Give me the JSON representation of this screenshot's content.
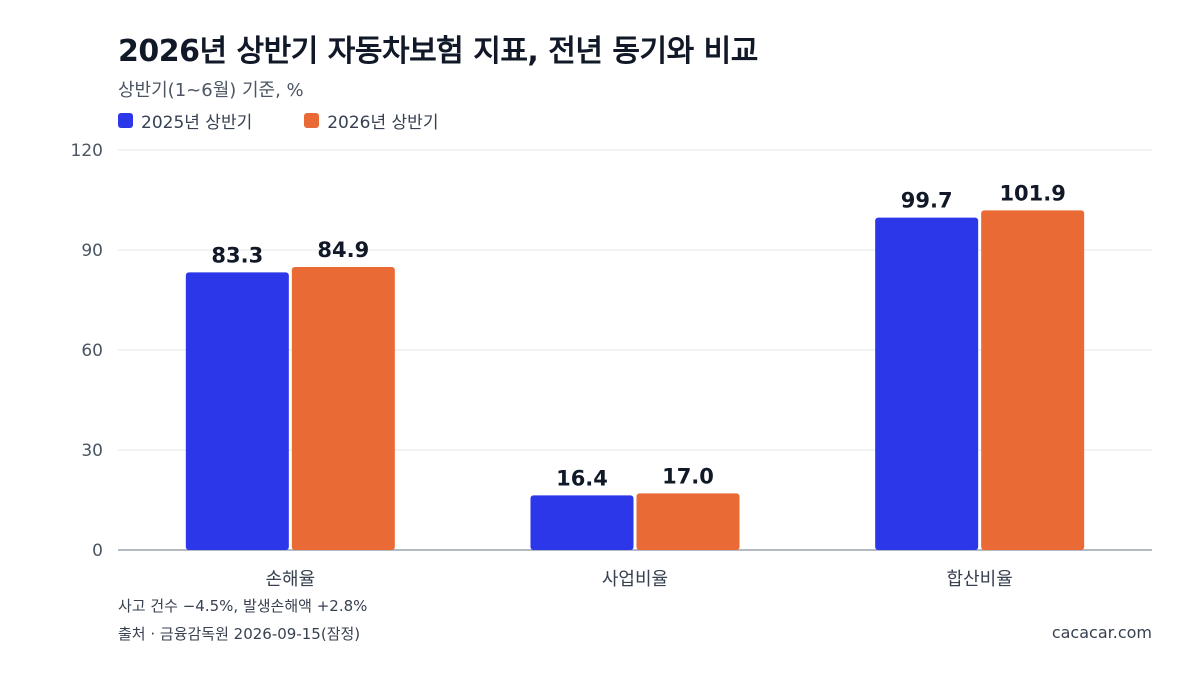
{
  "header": {
    "title": "2026년 상반기 자동차보험 지표, 전년 동기와 비교",
    "subtitle": "상반기(1~6월) 기준, %"
  },
  "footer": {
    "note": "사고 건수 −4.5%, 발생손해액 +2.8%",
    "source": "출처 · 금융감독원 2026-09-15(잠정)",
    "credit": "cacacar.com"
  },
  "colors": {
    "series_2025": "#2b37e8",
    "series_2026": "#ea6a35",
    "grid": "#e5e7eb",
    "axis": "#9ca3af"
  },
  "chart_data": {
    "type": "bar",
    "title": "2026년 상반기 자동차보험 지표, 전년 동기와 비교",
    "subtitle": "상반기(1~6월) 기준, %",
    "categories": [
      "손해율",
      "사업비율",
      "합산비율"
    ],
    "series": [
      {
        "name": "2025년 상반기",
        "values": [
          83.3,
          16.4,
          99.7
        ],
        "labels": [
          "83.3",
          "16.4",
          "99.7"
        ]
      },
      {
        "name": "2026년 상반기",
        "values": [
          84.9,
          17.0,
          101.9
        ],
        "labels": [
          "84.9",
          "17.0",
          "101.9"
        ]
      }
    ],
    "ylim": [
      0,
      120
    ],
    "yticks": [
      0,
      30,
      60,
      90,
      120
    ],
    "ytick_labels": [
      "0",
      "30",
      "60",
      "90",
      "120"
    ],
    "grid": true,
    "legend_position": "top-left"
  }
}
